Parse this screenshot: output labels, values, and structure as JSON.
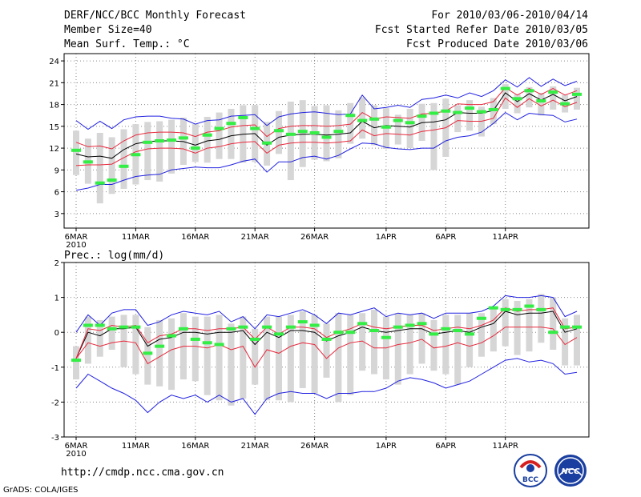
{
  "header": {
    "title": "DERF/NCC/BCC Monthly Forecast",
    "member_size": "Member Size=40",
    "variable": "Mean Surf. Temp.: °C",
    "period": "For 2010/03/06-2010/04/14",
    "started": "Fcst Started Refer Date 2010/03/05",
    "produced": "Fcst Produced Date 2010/03/06"
  },
  "footer": {
    "url": "http://cmdp.ncc.cma.gov.cn",
    "grads": "GrADS: COLA/IGES",
    "logo_bcc": "BCC",
    "logo_ncc": "NCC"
  },
  "colors": {
    "bar": "#d6d6d6",
    "mean": "#000000",
    "spread": "#e8283c",
    "extreme": "#2020e0",
    "obs": "#33ee44",
    "grid": "#888888"
  },
  "chart_data": [
    {
      "type": "box",
      "title": "Mean Surf. Temp.: °C",
      "ylim": [
        1,
        25
      ],
      "yticks": [
        3,
        6,
        9,
        12,
        15,
        18,
        21,
        24
      ],
      "x_tick_labels": [
        "6MAR",
        "11MAR",
        "16MAR",
        "21MAR",
        "26MAR",
        "1APR",
        "6APR",
        "11APR"
      ],
      "x_tick_index": [
        0,
        5,
        10,
        15,
        20,
        26,
        31,
        36
      ],
      "year_label": "2010",
      "series": [
        {
          "name": "ensemble mean",
          "values": [
            11.2,
            10.8,
            10.9,
            10.6,
            11.8,
            12.6,
            12.9,
            13.0,
            13.0,
            12.9,
            12.4,
            13.0,
            13.2,
            13.7,
            13.9,
            14.0,
            12.4,
            13.5,
            13.8,
            13.9,
            13.9,
            13.8,
            13.9,
            14.1,
            15.7,
            14.8,
            15.1,
            15.0,
            14.9,
            15.5,
            15.6,
            15.9,
            16.9,
            16.8,
            16.8,
            17.2,
            19.6,
            18.4,
            19.5,
            18.6,
            19.4,
            18.5,
            19.1
          ]
        },
        {
          "name": "upper spread",
          "values": [
            12.8,
            12.2,
            12.3,
            11.9,
            13.0,
            13.8,
            14.1,
            14.2,
            14.2,
            14.1,
            13.6,
            14.2,
            14.4,
            14.9,
            15.1,
            15.2,
            13.6,
            14.7,
            15.0,
            15.1,
            15.1,
            15.0,
            15.1,
            15.3,
            16.9,
            16.0,
            16.3,
            16.2,
            16.1,
            16.7,
            16.8,
            17.1,
            18.1,
            18.0,
            18.0,
            18.4,
            20.3,
            19.3,
            20.2,
            19.4,
            20.2,
            19.3,
            19.9
          ]
        },
        {
          "name": "lower spread",
          "values": [
            9.6,
            9.7,
            9.7,
            9.8,
            10.7,
            11.5,
            11.9,
            12.0,
            12.0,
            11.9,
            11.3,
            12.0,
            12.2,
            12.6,
            12.8,
            12.9,
            11.3,
            12.4,
            12.7,
            12.8,
            12.8,
            12.7,
            12.8,
            13.0,
            14.5,
            13.7,
            14.0,
            13.9,
            13.8,
            14.3,
            14.5,
            14.8,
            15.8,
            15.7,
            15.7,
            16.1,
            18.9,
            17.6,
            18.8,
            17.8,
            18.6,
            17.7,
            18.3
          ]
        },
        {
          "name": "maximum",
          "values": [
            15.8,
            14.6,
            15.7,
            14.7,
            15.9,
            16.3,
            16.4,
            16.4,
            16.1,
            16.0,
            15.3,
            15.8,
            15.9,
            16.4,
            16.5,
            16.6,
            15.1,
            16.3,
            16.7,
            16.9,
            17.0,
            16.8,
            16.6,
            16.7,
            19.3,
            17.4,
            17.6,
            17.9,
            17.6,
            18.7,
            18.9,
            19.3,
            18.9,
            19.6,
            19.1,
            19.9,
            21.4,
            20.4,
            21.7,
            20.5,
            21.5,
            20.6,
            21.2
          ]
        },
        {
          "name": "minimum",
          "values": [
            6.2,
            6.5,
            7.0,
            7.0,
            7.6,
            8.1,
            8.3,
            8.4,
            9.0,
            9.2,
            9.4,
            9.3,
            9.3,
            9.7,
            10.2,
            10.5,
            8.7,
            10.1,
            10.1,
            10.7,
            10.9,
            10.5,
            11.0,
            11.9,
            12.7,
            12.6,
            12.1,
            11.9,
            11.8,
            12.0,
            12.0,
            13.0,
            13.5,
            13.7,
            14.2,
            15.4,
            16.9,
            15.9,
            16.8,
            16.6,
            16.5,
            15.6,
            16.0
          ]
        },
        {
          "name": "observed",
          "values": [
            11.7,
            10.1,
            7.2,
            7.6,
            9.5,
            11.1,
            12.8,
            13.0,
            13.1,
            13.4,
            12.0,
            13.8,
            14.7,
            15.4,
            16.2,
            14.7,
            12.7,
            14.4,
            13.9,
            14.3,
            14.1,
            13.5,
            14.3,
            16.5,
            15.8,
            16.0,
            14.9,
            15.8,
            15.5,
            16.4,
            16.8,
            17.1,
            16.9,
            17.5,
            17.0,
            17.3,
            20.2,
            18.8,
            19.9,
            18.5,
            19.7,
            18.1,
            19.4
          ]
        }
      ],
      "bars": {
        "high": [
          14.4,
          13.3,
          14.1,
          13.5,
          14.6,
          15.3,
          15.6,
          15.7,
          15.9,
          16.2,
          15.3,
          16.3,
          16.9,
          17.4,
          17.9,
          17.9,
          15.6,
          17.1,
          18.4,
          18.6,
          17.8,
          17.9,
          17.2,
          18.2,
          19.0,
          17.9,
          17.5,
          16.6,
          17.4,
          18.1,
          18.2,
          18.8,
          17.9,
          18.6,
          17.7,
          18.9,
          20.8,
          19.4,
          20.4,
          19.6,
          20.5,
          19.3,
          20.3
        ],
        "low": [
          8.3,
          7.1,
          4.4,
          5.7,
          6.4,
          7.0,
          7.6,
          7.4,
          8.5,
          9.7,
          10.1,
          10.0,
          10.5,
          10.5,
          10.0,
          10.1,
          9.6,
          11.2,
          7.6,
          9.4,
          10.4,
          10.2,
          10.6,
          12.6,
          13.3,
          12.4,
          11.9,
          12.5,
          12.0,
          13.0,
          9.0,
          10.8,
          14.2,
          14.4,
          13.6,
          15.3,
          17.4,
          16.8,
          17.6,
          16.5,
          17.3,
          16.9,
          17.3
        ]
      }
    },
    {
      "type": "box",
      "title": "Prec.: log(mm/d)",
      "ylim": [
        -3,
        2
      ],
      "yticks": [
        -3,
        -2,
        -1,
        0,
        1,
        2
      ],
      "x_tick_labels": [
        "6MAR",
        "11MAR",
        "16MAR",
        "21MAR",
        "26MAR",
        "1APR",
        "6APR",
        "11APR"
      ],
      "x_tick_index": [
        0,
        5,
        10,
        15,
        20,
        26,
        31,
        36
      ],
      "year_label": "2010",
      "series": [
        {
          "name": "ensemble mean",
          "values": [
            -0.75,
            0.0,
            -0.1,
            0.1,
            0.1,
            0.15,
            -0.4,
            -0.2,
            -0.15,
            0.0,
            0.0,
            -0.05,
            0.0,
            0.0,
            0.05,
            -0.35,
            0.0,
            -0.15,
            0.05,
            0.05,
            0.0,
            -0.25,
            -0.1,
            0.0,
            0.15,
            0.05,
            0.0,
            0.05,
            0.1,
            0.1,
            -0.05,
            0.0,
            0.05,
            0.0,
            0.15,
            0.25,
            0.6,
            0.5,
            0.55,
            0.55,
            0.6,
            0.0,
            0.1
          ]
        },
        {
          "name": "upper spread",
          "values": [
            -0.75,
            0.1,
            0.05,
            0.2,
            0.15,
            0.2,
            -0.3,
            -0.1,
            -0.05,
            0.1,
            0.1,
            0.05,
            0.1,
            0.1,
            0.15,
            -0.2,
            0.15,
            -0.05,
            0.15,
            0.15,
            0.1,
            -0.15,
            0.0,
            0.1,
            0.25,
            0.15,
            0.1,
            0.15,
            0.2,
            0.2,
            0.05,
            0.1,
            0.15,
            0.1,
            0.2,
            0.35,
            0.7,
            0.6,
            0.65,
            0.65,
            0.7,
            0.1,
            0.15
          ]
        },
        {
          "name": "lower spread",
          "values": [
            -0.75,
            -0.3,
            -0.4,
            -0.3,
            -0.25,
            -0.3,
            -0.9,
            -0.7,
            -0.5,
            -0.4,
            -0.4,
            -0.45,
            -0.35,
            -0.5,
            -0.4,
            -1.0,
            -0.5,
            -0.6,
            -0.4,
            -0.3,
            -0.35,
            -0.75,
            -0.45,
            -0.3,
            -0.25,
            -0.45,
            -0.45,
            -0.35,
            -0.3,
            -0.2,
            -0.45,
            -0.4,
            -0.3,
            -0.4,
            -0.3,
            -0.1,
            0.15,
            0.15,
            0.15,
            0.15,
            0.1,
            -0.35,
            -0.15
          ]
        },
        {
          "name": "maximum",
          "values": [
            0.0,
            0.5,
            0.2,
            0.55,
            0.65,
            0.65,
            0.2,
            0.3,
            0.5,
            0.6,
            0.55,
            0.5,
            0.6,
            0.3,
            0.45,
            0.1,
            0.5,
            0.45,
            0.55,
            0.65,
            0.5,
            0.25,
            0.55,
            0.5,
            0.6,
            0.7,
            0.45,
            0.55,
            0.5,
            0.55,
            0.4,
            0.55,
            0.55,
            0.55,
            0.6,
            0.75,
            1.05,
            1.0,
            1.0,
            1.05,
            1.0,
            0.45,
            0.6
          ]
        },
        {
          "name": "minimum",
          "values": [
            -1.6,
            -1.2,
            -1.4,
            -1.6,
            -1.75,
            -1.95,
            -2.3,
            -2.0,
            -1.8,
            -1.9,
            -1.8,
            -2.0,
            -1.8,
            -2.0,
            -1.9,
            -2.35,
            -1.9,
            -1.75,
            -1.7,
            -1.75,
            -1.75,
            -1.9,
            -1.75,
            -1.75,
            -1.7,
            -1.7,
            -1.6,
            -1.4,
            -1.3,
            -1.35,
            -1.45,
            -1.6,
            -1.5,
            -1.4,
            -1.2,
            -1.0,
            -0.8,
            -0.75,
            -0.85,
            -0.8,
            -0.9,
            -1.2,
            -1.15
          ]
        },
        {
          "name": "observed",
          "values": [
            -0.8,
            0.2,
            0.2,
            0.1,
            0.15,
            0.15,
            -0.6,
            -0.4,
            -0.1,
            0.1,
            -0.2,
            -0.3,
            -0.35,
            0.1,
            0.15,
            -0.2,
            0.15,
            -0.05,
            0.15,
            0.3,
            0.2,
            -0.2,
            0.0,
            0.0,
            0.25,
            0.05,
            -0.15,
            0.15,
            0.2,
            0.25,
            -0.05,
            0.1,
            0.05,
            -0.05,
            0.4,
            0.7,
            0.65,
            0.65,
            0.75,
            0.65,
            0.0,
            0.15,
            0.15
          ]
        }
      ],
      "bars": {
        "high": [
          -0.4,
          0.45,
          0.35,
          0.45,
          0.5,
          0.5,
          0.15,
          0.35,
          0.4,
          0.55,
          0.45,
          0.45,
          0.5,
          0.25,
          0.45,
          0.1,
          0.45,
          0.45,
          0.5,
          0.6,
          0.5,
          0.25,
          0.55,
          0.5,
          0.55,
          0.65,
          0.45,
          0.55,
          0.5,
          0.55,
          0.35,
          0.5,
          0.5,
          0.55,
          0.55,
          0.7,
          0.95,
          0.9,
          0.95,
          1.1,
          1.0,
          0.4,
          0.5
        ],
        "low": [
          -1.35,
          -0.9,
          -0.7,
          -0.5,
          -1.0,
          -1.2,
          -1.5,
          -1.55,
          -1.65,
          -1.35,
          -1.4,
          -1.8,
          -1.95,
          -2.1,
          -1.9,
          -1.5,
          -1.95,
          -1.95,
          -2.0,
          -1.6,
          -1.75,
          -1.3,
          -2.0,
          -1.8,
          -1.1,
          -1.2,
          -1.35,
          -1.5,
          -1.2,
          -0.9,
          -1.1,
          -1.2,
          -1.5,
          -1.0,
          -0.7,
          -0.55,
          -0.4,
          -0.65,
          -0.55,
          -0.3,
          -0.5,
          -0.95,
          -0.95
        ]
      }
    }
  ]
}
